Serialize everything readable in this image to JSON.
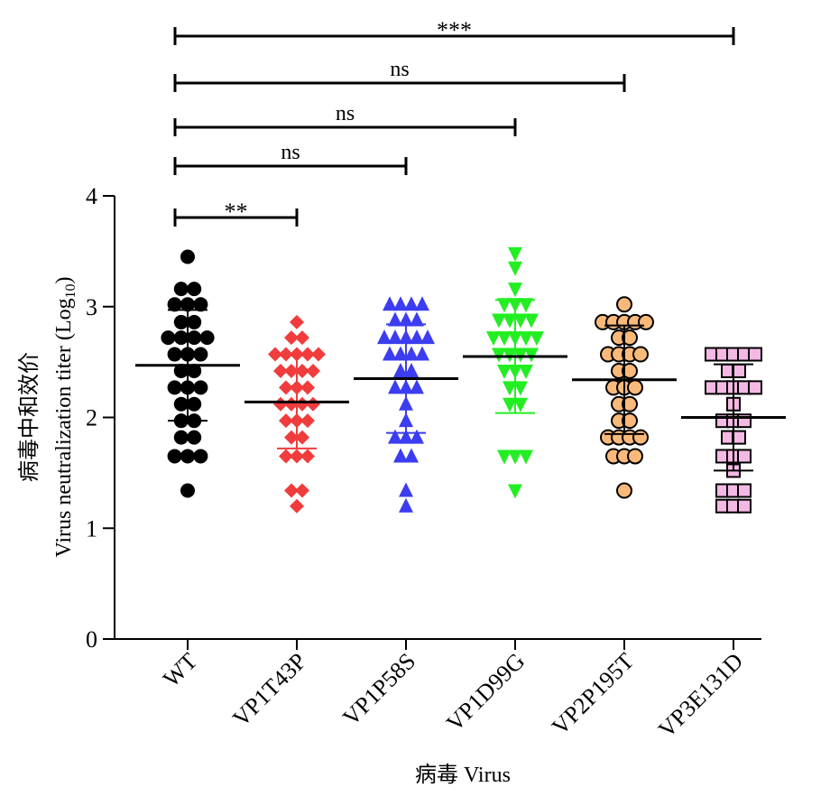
{
  "chart_data": {
    "type": "scatter",
    "title": "",
    "xlabel": "病毒 Virus",
    "ylabel_line1": "病毒中和效价",
    "ylabel_line2": "Virus neutralization titer (Log",
    "ylabel_subscript": "10",
    "ylabel_close": ")",
    "ylim": [
      0,
      4
    ],
    "yticks": [
      0,
      1,
      2,
      3,
      4
    ],
    "categories": [
      "WT",
      "VP1T43P",
      "VP1P58S",
      "VP1D99G",
      "VP2P195T",
      "VP3E131D"
    ],
    "series": [
      {
        "category": "WT",
        "marker": "circle",
        "color": "#000000",
        "stroke": "#000000",
        "mean": 2.47,
        "sd_low": 1.97,
        "sd_high": 2.97,
        "points": [
          [
            0.0,
            3.45
          ],
          [
            -0.06,
            3.16
          ],
          [
            0.06,
            3.16
          ],
          [
            -0.12,
            3.02
          ],
          [
            0.0,
            3.02
          ],
          [
            0.12,
            3.02
          ],
          [
            -0.06,
            2.86
          ],
          [
            0.06,
            2.86
          ],
          [
            -0.18,
            2.72
          ],
          [
            -0.06,
            2.72
          ],
          [
            0.06,
            2.72
          ],
          [
            0.18,
            2.72
          ],
          [
            -0.12,
            2.57
          ],
          [
            0.0,
            2.57
          ],
          [
            0.12,
            2.57
          ],
          [
            -0.06,
            2.42
          ],
          [
            0.06,
            2.42
          ],
          [
            -0.12,
            2.27
          ],
          [
            0.0,
            2.27
          ],
          [
            0.12,
            2.27
          ],
          [
            -0.06,
            2.12
          ],
          [
            0.06,
            2.12
          ],
          [
            -0.06,
            1.97
          ],
          [
            0.06,
            1.97
          ],
          [
            -0.06,
            1.82
          ],
          [
            0.06,
            1.82
          ],
          [
            -0.12,
            1.65
          ],
          [
            0.0,
            1.65
          ],
          [
            0.12,
            1.65
          ],
          [
            0.0,
            1.34
          ]
        ]
      },
      {
        "category": "VP1T43P",
        "marker": "diamond",
        "color": "#f03c3c",
        "stroke": "#f03c3c",
        "mean": 2.14,
        "sd_low": 1.72,
        "sd_high": 2.56,
        "points": [
          [
            0.0,
            2.86
          ],
          [
            -0.05,
            2.72
          ],
          [
            0.05,
            2.72
          ],
          [
            -0.2,
            2.57
          ],
          [
            -0.1,
            2.57
          ],
          [
            0.0,
            2.57
          ],
          [
            0.1,
            2.57
          ],
          [
            0.2,
            2.57
          ],
          [
            -0.15,
            2.42
          ],
          [
            -0.05,
            2.42
          ],
          [
            0.05,
            2.42
          ],
          [
            0.15,
            2.42
          ],
          [
            -0.1,
            2.27
          ],
          [
            0.0,
            2.27
          ],
          [
            0.1,
            2.27
          ],
          [
            -0.15,
            2.12
          ],
          [
            -0.05,
            2.12
          ],
          [
            0.05,
            2.12
          ],
          [
            0.15,
            2.12
          ],
          [
            -0.1,
            1.97
          ],
          [
            0.0,
            1.97
          ],
          [
            0.1,
            1.97
          ],
          [
            -0.05,
            1.82
          ],
          [
            0.05,
            1.82
          ],
          [
            -0.1,
            1.65
          ],
          [
            0.0,
            1.65
          ],
          [
            0.1,
            1.65
          ],
          [
            -0.05,
            1.34
          ],
          [
            0.05,
            1.34
          ],
          [
            0.0,
            1.2
          ]
        ]
      },
      {
        "category": "VP1P58S",
        "marker": "triangle-up",
        "color": "#3c3cf0",
        "stroke": "#3c3cf0",
        "mean": 2.35,
        "sd_low": 1.86,
        "sd_high": 2.84,
        "points": [
          [
            -0.15,
            3.02
          ],
          [
            -0.05,
            3.02
          ],
          [
            0.05,
            3.02
          ],
          [
            0.15,
            3.02
          ],
          [
            -0.1,
            2.88
          ],
          [
            0.0,
            2.88
          ],
          [
            0.1,
            2.88
          ],
          [
            -0.2,
            2.72
          ],
          [
            -0.1,
            2.72
          ],
          [
            0.0,
            2.72
          ],
          [
            0.1,
            2.72
          ],
          [
            0.2,
            2.72
          ],
          [
            -0.15,
            2.57
          ],
          [
            -0.05,
            2.57
          ],
          [
            0.05,
            2.57
          ],
          [
            0.15,
            2.57
          ],
          [
            -0.05,
            2.42
          ],
          [
            0.05,
            2.42
          ],
          [
            -0.1,
            2.27
          ],
          [
            0.0,
            2.27
          ],
          [
            0.1,
            2.27
          ],
          [
            0.0,
            2.12
          ],
          [
            0.0,
            1.97
          ],
          [
            -0.1,
            1.82
          ],
          [
            0.0,
            1.82
          ],
          [
            0.1,
            1.82
          ],
          [
            -0.05,
            1.65
          ],
          [
            0.05,
            1.65
          ],
          [
            0.0,
            1.34
          ],
          [
            0.0,
            1.2
          ]
        ]
      },
      {
        "category": "VP1D99G",
        "marker": "triangle-down",
        "color": "#22ee22",
        "stroke": "#22ee22",
        "mean": 2.55,
        "sd_low": 2.04,
        "sd_high": 3.06,
        "points": [
          [
            0.0,
            3.48
          ],
          [
            0.0,
            3.35
          ],
          [
            0.0,
            3.16
          ],
          [
            -0.1,
            3.02
          ],
          [
            0.0,
            3.02
          ],
          [
            0.1,
            3.02
          ],
          [
            -0.15,
            2.88
          ],
          [
            -0.05,
            2.88
          ],
          [
            0.05,
            2.88
          ],
          [
            0.15,
            2.88
          ],
          [
            -0.2,
            2.72
          ],
          [
            -0.1,
            2.72
          ],
          [
            0.0,
            2.72
          ],
          [
            0.1,
            2.72
          ],
          [
            0.2,
            2.72
          ],
          [
            -0.15,
            2.57
          ],
          [
            -0.05,
            2.57
          ],
          [
            0.05,
            2.57
          ],
          [
            0.15,
            2.57
          ],
          [
            -0.1,
            2.42
          ],
          [
            0.0,
            2.42
          ],
          [
            0.1,
            2.42
          ],
          [
            -0.05,
            2.27
          ],
          [
            0.05,
            2.27
          ],
          [
            -0.05,
            2.12
          ],
          [
            0.05,
            2.12
          ],
          [
            -0.1,
            1.65
          ],
          [
            0.0,
            1.65
          ],
          [
            0.1,
            1.65
          ],
          [
            0.0,
            1.34
          ]
        ]
      },
      {
        "category": "VP2P195T",
        "marker": "circle",
        "color": "#f9b97a",
        "stroke": "#000000",
        "mean": 2.34,
        "sd_low": 1.85,
        "sd_high": 2.83,
        "points": [
          [
            0.0,
            3.02
          ],
          [
            -0.2,
            2.86
          ],
          [
            -0.1,
            2.86
          ],
          [
            0.0,
            2.86
          ],
          [
            0.1,
            2.86
          ],
          [
            0.2,
            2.86
          ],
          [
            -0.05,
            2.72
          ],
          [
            0.05,
            2.72
          ],
          [
            -0.15,
            2.57
          ],
          [
            -0.05,
            2.57
          ],
          [
            0.05,
            2.57
          ],
          [
            0.15,
            2.57
          ],
          [
            -0.05,
            2.42
          ],
          [
            0.05,
            2.42
          ],
          [
            -0.1,
            2.27
          ],
          [
            0.0,
            2.27
          ],
          [
            0.1,
            2.27
          ],
          [
            -0.05,
            2.12
          ],
          [
            0.05,
            2.12
          ],
          [
            -0.05,
            1.97
          ],
          [
            0.05,
            1.97
          ],
          [
            -0.15,
            1.82
          ],
          [
            -0.05,
            1.82
          ],
          [
            0.05,
            1.82
          ],
          [
            0.15,
            1.82
          ],
          [
            -0.1,
            1.65
          ],
          [
            0.0,
            1.65
          ],
          [
            0.1,
            1.65
          ],
          [
            0.0,
            1.34
          ]
        ]
      },
      {
        "category": "VP3E131D",
        "marker": "square",
        "color": "#f4b8e4",
        "stroke": "#000000",
        "mean": 2.0,
        "sd_low": 1.52,
        "sd_high": 2.48,
        "points": [
          [
            -0.2,
            2.57
          ],
          [
            -0.1,
            2.57
          ],
          [
            0.0,
            2.57
          ],
          [
            0.1,
            2.57
          ],
          [
            0.2,
            2.57
          ],
          [
            -0.05,
            2.42
          ],
          [
            0.05,
            2.42
          ],
          [
            -0.2,
            2.27
          ],
          [
            -0.1,
            2.27
          ],
          [
            0.0,
            2.27
          ],
          [
            0.1,
            2.27
          ],
          [
            0.2,
            2.27
          ],
          [
            0.0,
            2.12
          ],
          [
            -0.1,
            1.97
          ],
          [
            0.0,
            1.97
          ],
          [
            0.1,
            1.97
          ],
          [
            -0.05,
            1.82
          ],
          [
            0.05,
            1.82
          ],
          [
            -0.1,
            1.65
          ],
          [
            0.0,
            1.65
          ],
          [
            0.1,
            1.65
          ],
          [
            0.0,
            1.52
          ],
          [
            -0.1,
            1.34
          ],
          [
            0.0,
            1.34
          ],
          [
            0.1,
            1.34
          ],
          [
            -0.1,
            1.2
          ],
          [
            0.0,
            1.2
          ],
          [
            0.1,
            1.2
          ]
        ]
      }
    ],
    "significance": [
      {
        "from": "WT",
        "to": "VP1T43P",
        "label": "**"
      },
      {
        "from": "WT",
        "to": "VP1P58S",
        "label": "ns"
      },
      {
        "from": "WT",
        "to": "VP1D99G",
        "label": "ns"
      },
      {
        "from": "WT",
        "to": "VP2P195T",
        "label": "ns"
      },
      {
        "from": "WT",
        "to": "VP3E131D",
        "label": "***"
      }
    ]
  }
}
